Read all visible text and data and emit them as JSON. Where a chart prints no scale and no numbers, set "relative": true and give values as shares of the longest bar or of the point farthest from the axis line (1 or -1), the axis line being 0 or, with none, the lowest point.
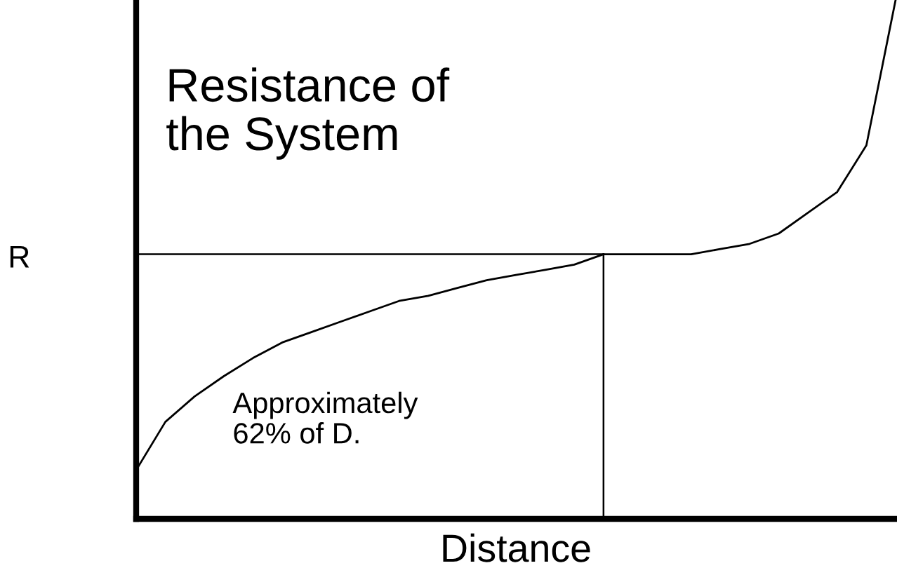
{
  "chart_data": {
    "type": "line",
    "relative": true,
    "xlabel": "Distance",
    "ylabel": "R",
    "annotations": [
      "Resistance of\nthe System",
      "Approximately\n62% of D."
    ],
    "marker": "none",
    "line_style": "solid",
    "categories": [
      null,
      null,
      null,
      null,
      null,
      null,
      null,
      null,
      null,
      null,
      null,
      null,
      null,
      null,
      null,
      null,
      null,
      null,
      null,
      null,
      null,
      null,
      null,
      null,
      null,
      null,
      null
    ],
    "series": [
      {
        "color": "#000000",
        "values": [
          0.094,
          0.187,
          0.236,
          0.275,
          0.31,
          0.34,
          0.36,
          0.38,
          0.4,
          0.42,
          0.43,
          0.445,
          0.46,
          0.47,
          0.48,
          0.49,
          0.51,
          0.51,
          0.51,
          0.51,
          0.52,
          0.53,
          0.55,
          0.59,
          0.63,
          0.72,
          1.0
        ]
      }
    ],
    "ref_lines": [
      {
        "axis": "y",
        "value": 0.51,
        "color": "#000000"
      }
    ]
  }
}
